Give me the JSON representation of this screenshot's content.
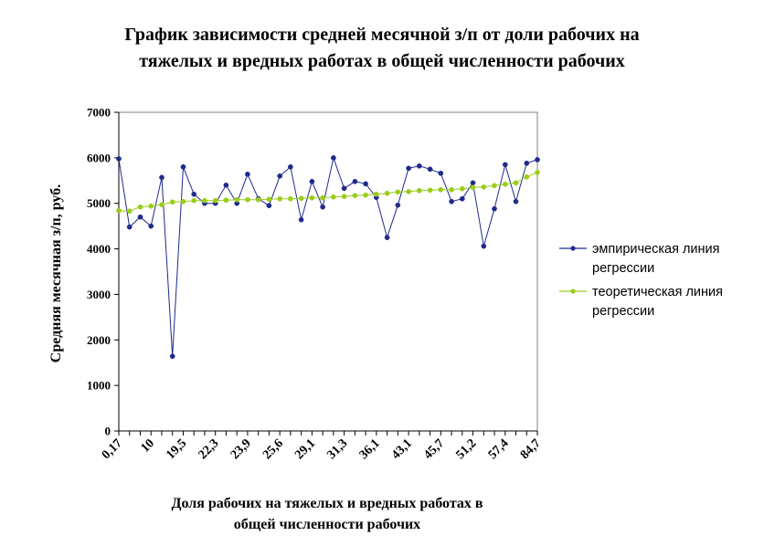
{
  "chart_data": {
    "type": "line",
    "title_lines": [
      "График зависимости средней месячной з/п от доли рабочих на",
      "тяжелых и вредных работах в общей численности рабочих"
    ],
    "xlabel_lines": [
      "Доля рабочих на тяжелых и вредных работах в",
      "общей численности рабочих"
    ],
    "ylabel": "Средняя месячная з/п, руб.",
    "ylim": [
      0,
      7000
    ],
    "y_ticks": [
      0,
      1000,
      2000,
      3000,
      4000,
      5000,
      6000,
      7000
    ],
    "x_tick_labels": [
      "0,17",
      "10",
      "19,5",
      "22,3",
      "23,9",
      "25,6",
      "29,1",
      "31,3",
      "36,1",
      "43,1",
      "45,7",
      "51,2",
      "57,4",
      "84,7"
    ],
    "legend_position": "right",
    "series": [
      {
        "name": "эмпирическая линия регрессии",
        "color": "#1f2a8c",
        "marker": "circle",
        "values": [
          5980,
          4480,
          4700,
          4500,
          5570,
          1640,
          5800,
          5200,
          5000,
          5000,
          5400,
          5000,
          5640,
          5100,
          4950,
          5600,
          5800,
          4640,
          5480,
          4920,
          6000,
          5330,
          5480,
          5430,
          5130,
          4250,
          4960,
          5770,
          5820,
          5750,
          5660,
          5040,
          5100,
          5450,
          4060,
          4880,
          5850,
          5040,
          5880,
          5960
        ]
      },
      {
        "name": "теоретическая линия регрессии",
        "color": "#9acd1a",
        "marker": "circle",
        "values": [
          4840,
          4830,
          4920,
          4940,
          4970,
          5030,
          5040,
          5060,
          5060,
          5060,
          5070,
          5080,
          5080,
          5080,
          5090,
          5100,
          5100,
          5110,
          5120,
          5120,
          5140,
          5150,
          5170,
          5180,
          5200,
          5220,
          5250,
          5260,
          5280,
          5290,
          5300,
          5300,
          5320,
          5350,
          5360,
          5390,
          5420,
          5450,
          5580,
          5680
        ]
      }
    ]
  }
}
